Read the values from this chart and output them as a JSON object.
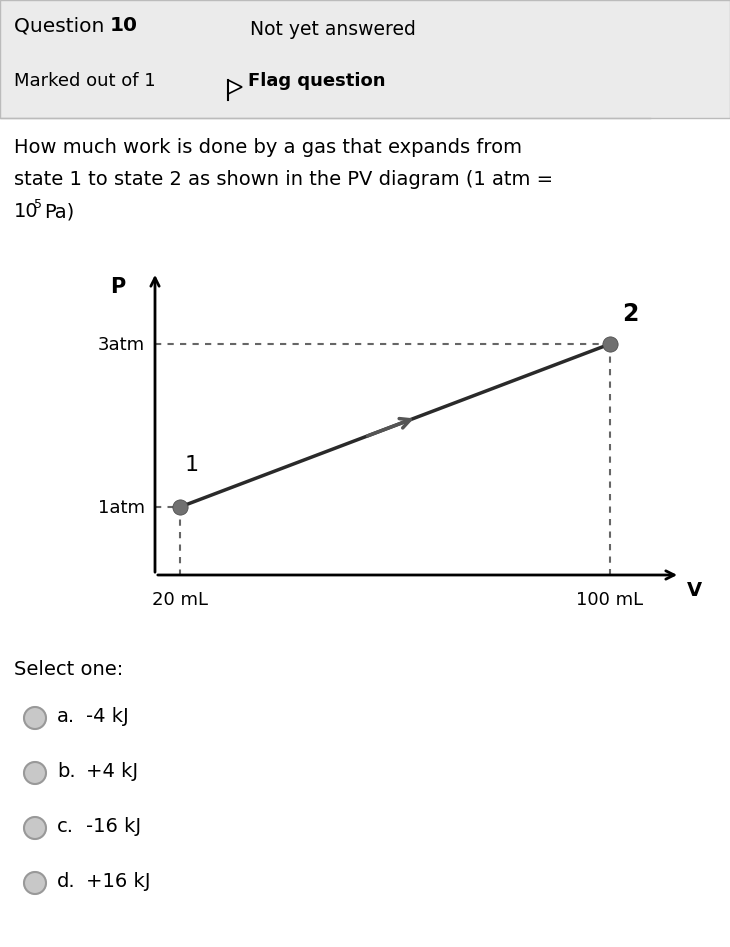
{
  "bg_color": "#ebebeb",
  "white": "#ffffff",
  "header_text2": "Not yet answered",
  "header_text3": "Marked out of 1",
  "header_text4": "Flag question",
  "question_line1": "How much work is done by a gas that expands from",
  "question_line2": "state 1 to state 2 as shown in the PV diagram (1 atm =",
  "question_line3_main": "10",
  "question_line3_sup": "5",
  "question_line3_end": "Pa)",
  "p_label": "P",
  "v_label": "V",
  "y_label_3atm": "3atm",
  "y_label_1atm": "1atm",
  "x_label_20": "20 mL",
  "x_label_100": "100 mL",
  "state1_label": "1",
  "state2_label": "2",
  "point_color": "#707070",
  "line_color": "#2a2a2a",
  "arrow_color": "#555555",
  "dashed_color": "#666666",
  "select_one": "Select one:",
  "options": [
    {
      "letter": "a.",
      "text": "-4 kJ"
    },
    {
      "letter": "b.",
      "text": "+4 kJ"
    },
    {
      "letter": "c.",
      "text": "-16 kJ"
    },
    {
      "letter": "d.",
      "text": "+16 kJ"
    }
  ]
}
